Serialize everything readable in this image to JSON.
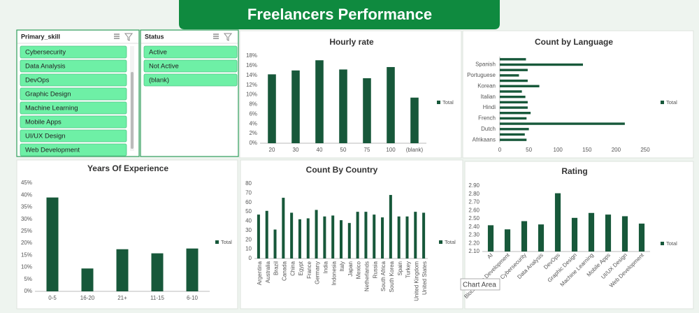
{
  "title": "Freelancers Performance",
  "tooltip": "Chart Area",
  "slicers": [
    {
      "header": "Primary_skill",
      "items": [
        "Cybersecurity",
        "Data Analysis",
        "DevOps",
        "Graphic Design",
        "Machine Learning",
        "Mobile Apps",
        "UI/UX Design",
        "Web Development"
      ]
    },
    {
      "header": "Status",
      "items": [
        "Active",
        "Not Active",
        "(blank)"
      ]
    }
  ],
  "chart_data": [
    {
      "type": "bar",
      "title": "Hourly rate",
      "categories": [
        "20",
        "30",
        "40",
        "50",
        "75",
        "100",
        "(blank)"
      ],
      "series": [
        {
          "name": "Total",
          "color": "#17583a",
          "values": [
            14.2,
            15,
            17.1,
            15.2,
            13.4,
            15.7,
            9.4
          ]
        }
      ],
      "ylim": [
        0,
        18
      ],
      "yticks": [
        {
          "value": 0,
          "label": "0%"
        },
        {
          "value": 2,
          "label": "2%"
        },
        {
          "value": 4,
          "label": "4%"
        },
        {
          "value": 6,
          "label": "6%"
        },
        {
          "value": 8,
          "label": "8%"
        },
        {
          "value": 10,
          "label": "10%"
        },
        {
          "value": 12,
          "label": "12%"
        },
        {
          "value": 14,
          "label": "14%"
        },
        {
          "value": 16,
          "label": "16%"
        },
        {
          "value": 18,
          "label": "18%"
        }
      ],
      "legend": "right",
      "grid": false
    },
    {
      "type": "hbar",
      "title": "Count by Language",
      "categories": [
        "Afrikaans",
        null,
        "Dutch",
        null,
        "French",
        null,
        "Hindi",
        null,
        "Italian",
        null,
        "Korean",
        null,
        "Portuguese",
        null,
        "Spanish",
        null
      ],
      "series": [
        {
          "name": "Total",
          "color": "#17583a",
          "values": [
            46,
            43,
            50,
            215,
            46,
            53,
            48,
            48,
            44,
            38,
            68,
            48,
            33,
            48,
            143,
            45
          ]
        }
      ],
      "xlim": [
        0,
        250
      ],
      "xticks": [
        0,
        50,
        100,
        150,
        200,
        250
      ],
      "legend": "right",
      "grid": false
    },
    {
      "type": "bar",
      "title": "Years Of Experience",
      "categories": [
        "0-5",
        "16-20",
        "21+",
        "11-15",
        "6-10"
      ],
      "series": [
        {
          "name": "Total",
          "color": "#17583a",
          "values": [
            39,
            9.5,
            17.5,
            15.8,
            17.8
          ]
        }
      ],
      "ylim": [
        0,
        45
      ],
      "yticks": [
        {
          "value": 0,
          "label": "0%"
        },
        {
          "value": 5,
          "label": "5%"
        },
        {
          "value": 10,
          "label": "10%"
        },
        {
          "value": 15,
          "label": "15%"
        },
        {
          "value": 20,
          "label": "20%"
        },
        {
          "value": 25,
          "label": "25%"
        },
        {
          "value": 30,
          "label": "30%"
        },
        {
          "value": 35,
          "label": "35%"
        },
        {
          "value": 40,
          "label": "40%"
        },
        {
          "value": 45,
          "label": "45%"
        }
      ],
      "legend": "right",
      "grid": false
    },
    {
      "type": "bar",
      "title": "Count By Country",
      "categories": [
        "Argentina",
        "Australia",
        "Brazil",
        "Canada",
        "China",
        "Egypt",
        "France",
        "Germany",
        "India",
        "Indonesia",
        "Italy",
        "Japan",
        "Mexico",
        "Netherlands",
        "Russia",
        "South Africa",
        "South Korea",
        "Spain",
        "Turkey",
        "United Kingdom",
        "United States"
      ],
      "series": [
        {
          "name": "Total",
          "color": "#17583a",
          "values": [
            47,
            51,
            31,
            65,
            49,
            42,
            43,
            52,
            45,
            46,
            41,
            38,
            50,
            50,
            47,
            44,
            68,
            45,
            45,
            50,
            49
          ]
        }
      ],
      "ylim": [
        0,
        80
      ],
      "yticks": [
        0,
        10,
        20,
        30,
        40,
        50,
        60,
        70,
        80
      ],
      "legend": "right",
      "grid": false
    },
    {
      "type": "bar",
      "title": "Rating",
      "categories": [
        "AI",
        "Blockchain Development",
        "Cybersecurity",
        "Data Analysis",
        "DevOps",
        "Graphic Design",
        "Machine Learning",
        "Mobile Apps",
        "UI/UX Design",
        "Web Development"
      ],
      "series": [
        {
          "name": "Total",
          "color": "#17583a",
          "values": [
            2.42,
            2.37,
            2.47,
            2.43,
            2.81,
            2.51,
            2.57,
            2.55,
            2.53,
            2.44
          ]
        }
      ],
      "ylim": [
        2.1,
        2.9
      ],
      "yticks": [
        {
          "value": 2.1,
          "label": "2.10"
        },
        {
          "value": 2.2,
          "label": "2.20"
        },
        {
          "value": 2.3,
          "label": "2.30"
        },
        {
          "value": 2.4,
          "label": "2.40"
        },
        {
          "value": 2.5,
          "label": "2.50"
        },
        {
          "value": 2.6,
          "label": "2.60"
        },
        {
          "value": 2.7,
          "label": "2.70"
        },
        {
          "value": 2.8,
          "label": "2.80"
        },
        {
          "value": 2.9,
          "label": "2.90"
        }
      ],
      "legend": "right",
      "grid": false
    }
  ]
}
